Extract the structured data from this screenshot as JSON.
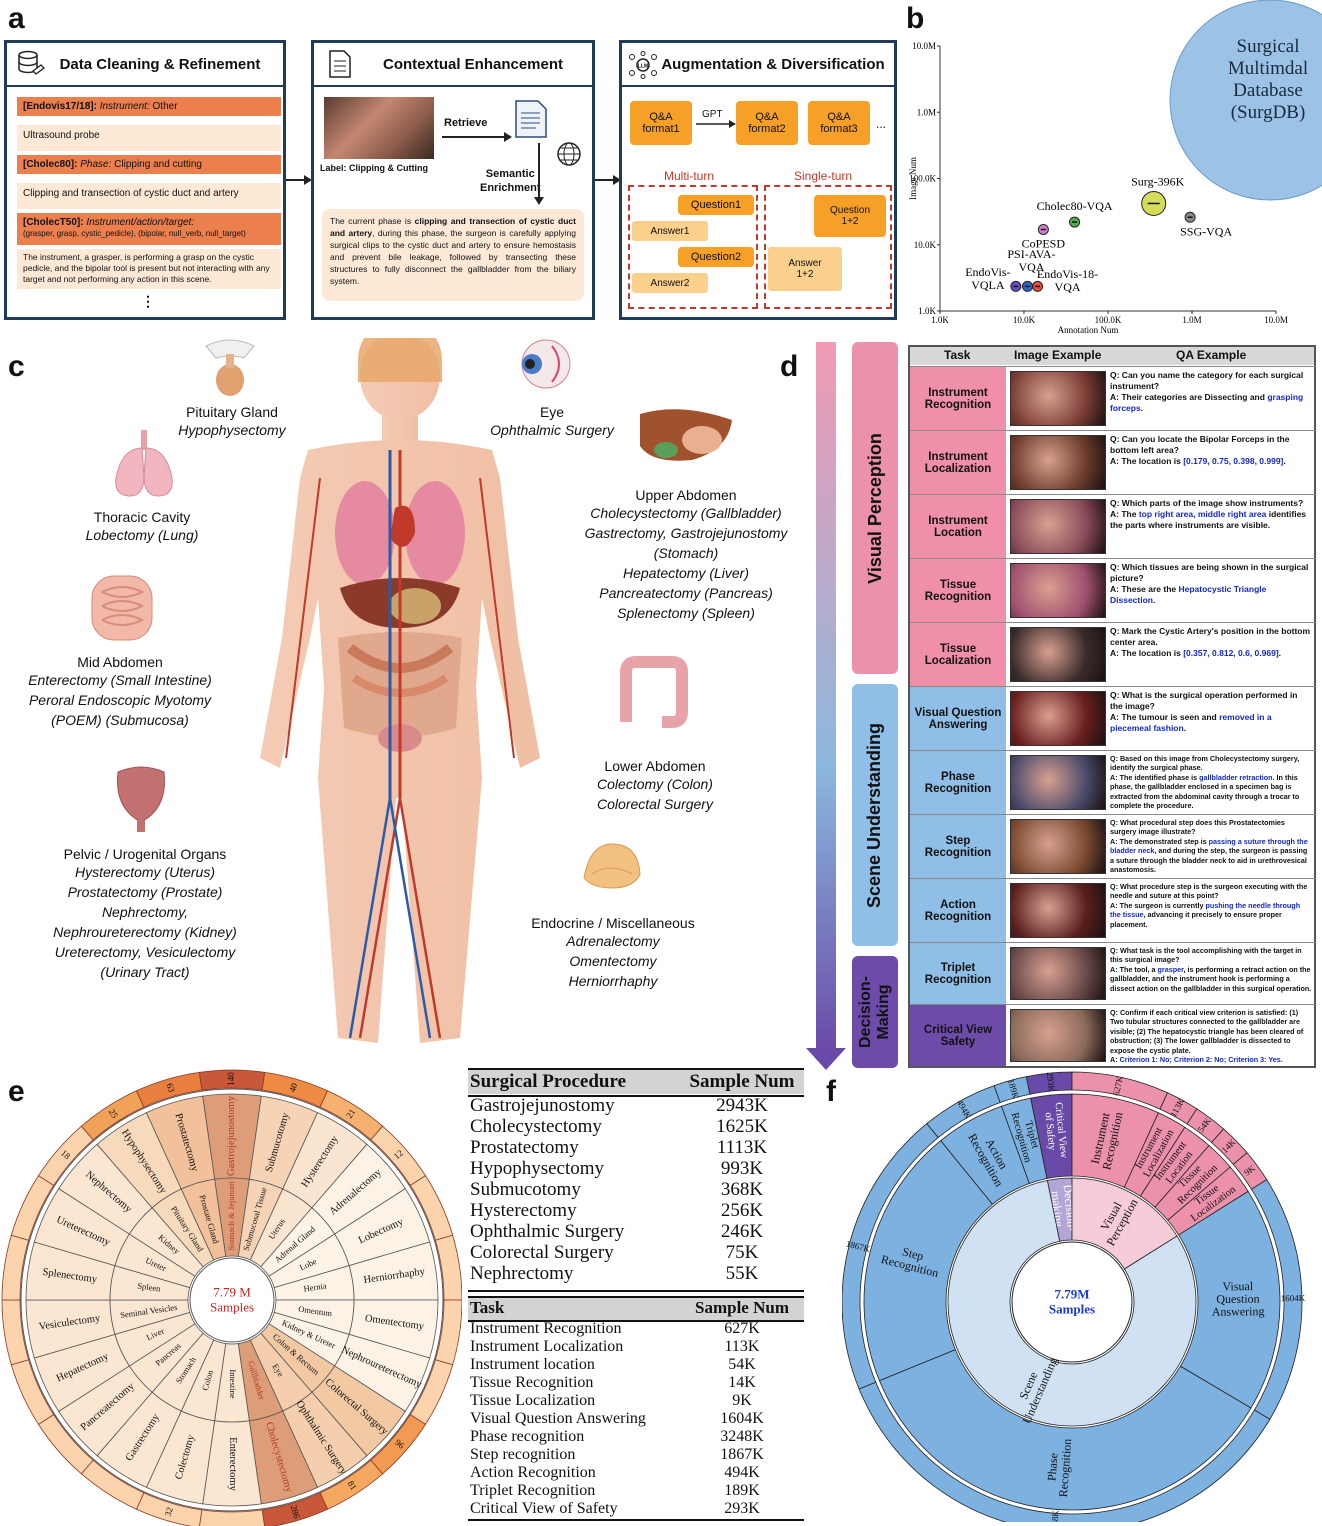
{
  "panel_labels": {
    "a": "a",
    "b": "b",
    "c": "c",
    "d": "d",
    "e": "e",
    "f": "f"
  },
  "panel_a": {
    "box1": {
      "title": "Data Cleaning & Refinement",
      "icon": "database-icon",
      "items": [
        {
          "kind": "header",
          "bold": "[Endovis17/18]:",
          "italic": "Instrument:",
          "rest": " Other"
        },
        {
          "kind": "body",
          "text": "Ultrasound probe"
        },
        {
          "kind": "header",
          "bold": "[Cholec80]:",
          "italic": "Phase:",
          "rest": " Clipping and cutting"
        },
        {
          "kind": "body",
          "text": "Clipping and transection of cystic duct and artery"
        },
        {
          "kind": "header",
          "bold": "[CholecT50]:",
          "italic": "Instrument/action/target:",
          "rest": ""
        },
        {
          "kind": "sub",
          "text": "(grasper, grasp, cystic_pedicle), (bipolar, null_verb, null_target)"
        },
        {
          "kind": "body",
          "text": "The instrument, a grasper, is performing a grasp on the cystic pedicle, and the bipolar tool is present but not interacting with any target and not performing any action in this scene."
        }
      ],
      "ellipsis": "⋮"
    },
    "box2": {
      "title": "Contextual Enhancement",
      "icon": "document-icon",
      "image_label": "Label: Clipping & Cutting",
      "retrieve": "Retrieve",
      "semantic": "Semantic\nEnrichment",
      "para_pre": "The current phase is ",
      "para_bold1": "clipping and transection of cystic duct and artery",
      "para_post": ", during this phase, the surgeon is carefully applying surgical clips to the cystic duct and artery to ensure hemostasis and prevent bile leakage, followed by transecting these structures to fully disconnect the gallbladder from the biliary system."
    },
    "box3": {
      "title": "Augmentation & Diversification",
      "icon": "llm-icon",
      "formats": [
        "Q&A\nformat1",
        "Q&A\nformat2",
        "Q&A\nformat3"
      ],
      "gpt": "GPT",
      "more": "...",
      "multi_turn": "Multi-turn",
      "single_turn": "Single-turn",
      "question1": "Question1",
      "answer1": "Answer1",
      "question2": "Question2",
      "answer2": "Answer2",
      "question12": "Question\n1+2",
      "answer12": "Answer\n1+2"
    }
  },
  "panel_b_chart": {
    "chart_data": {
      "type": "scatter",
      "xlabel": "Annotation Num",
      "ylabel": "Image Num",
      "x_scale": "log",
      "y_scale": "log",
      "xlim": [
        1000,
        10000000
      ],
      "ylim": [
        1000,
        10000000
      ],
      "x_ticks": [
        "1.0K",
        "10.0K",
        "100.0K",
        "1.0M",
        "10.0M"
      ],
      "y_ticks": [
        "1.0K",
        "10.0K",
        "100.0K",
        "1.0M",
        "10.0M"
      ],
      "points": [
        {
          "name": "Surg-396K",
          "x": 350000,
          "y": 42000,
          "color": "#d4dc5a"
        },
        {
          "name": "SSG-VQA",
          "x": 950000,
          "y": 26000,
          "color": "#8a8a8a"
        },
        {
          "name": "Cholec80-VQA",
          "x": 40000,
          "y": 22000,
          "color": "#4caf50"
        },
        {
          "name": "CoPESD",
          "x": 17000,
          "y": 17000,
          "color": "#d37fd0"
        },
        {
          "name": "PSI-AVA-VQA",
          "x": 11000,
          "y": 2350,
          "color": "#2a66c8"
        },
        {
          "name": "EndoVis-VQLA",
          "x": 8000,
          "y": 2350,
          "color": "#6a4cc7"
        },
        {
          "name": "EndoVis-18-VQA",
          "x": 14500,
          "y": 2350,
          "color": "#e84c3d"
        }
      ],
      "highlight": "Surgical\nMultimdal\n\nDatabase\n(SurgDB)"
    }
  },
  "panel_c": {
    "pituitary": {
      "title": "Pituitary Gland",
      "lines": [
        "Hypophysectomy"
      ]
    },
    "thoracic": {
      "title": "Thoracic Cavity",
      "lines": [
        "Lobectomy (Lung)"
      ]
    },
    "mid": {
      "title": "Mid Abdomen",
      "lines": [
        "Enterectomy (Small Intestine)",
        "Peroral Endoscopic Myotomy",
        "(POEM) (Submucosa)"
      ]
    },
    "pelvic": {
      "title": "Pelvic / Urogenital Organs",
      "lines": [
        "Hysterectomy (Uterus)",
        "Prostatectomy (Prostate)",
        "Nephrectomy,",
        "Nephroureterectomy (Kidney)",
        "Ureterectomy, Vesiculectomy",
        "(Urinary Tract)"
      ]
    },
    "eye": {
      "title": "Eye",
      "lines": [
        "Ophthalmic Surgery"
      ]
    },
    "upper": {
      "title": "Upper Abdomen",
      "lines": [
        "Cholecystectomy (Gallbladder)",
        "Gastrectomy, Gastrojejunostomy",
        "(Stomach)",
        "Hepatectomy (Liver)",
        "Pancreatectomy (Pancreas)",
        "Splenectomy (Spleen)"
      ]
    },
    "lower": {
      "title": "Lower Abdomen",
      "lines": [
        "Colectomy (Colon)",
        "Colorectal Surgery"
      ]
    },
    "endocrine": {
      "title": "Endocrine / Miscellaneous",
      "lines": [
        "Adrenalectomy",
        "Omentectomy",
        "Herniorrhaphy"
      ]
    }
  },
  "panel_d": {
    "headers": {
      "task": "Task",
      "image": "Image Example",
      "qa": "QA Example"
    },
    "bands": {
      "visual": "Visual Perception",
      "scene": "Scene Understanding",
      "decision": "Decision-\nMaking"
    },
    "rows": [
      {
        "task": "Instrument\nRecognition",
        "group": "vp",
        "q": "Q: Can you name the category for each surgical instrument?",
        "a_pre": "A: Their categories are Dissecting and ",
        "a_hl": "grasping forceps",
        "a_post": "."
      },
      {
        "task": "Instrument\nLocalization",
        "group": "vp",
        "q": "Q: Can you locate the Bipolar Forceps in the bottom left area?",
        "a_pre": "A: The location is ",
        "a_hl": "[0.179, 0.75, 0.398, 0.999]",
        "a_post": "."
      },
      {
        "task": "Instrument\nLocation",
        "group": "vp",
        "q": "Q: Which parts of the image show instruments?",
        "a_pre": "A: The ",
        "a_hl": "top right area, middle right area",
        "a_post": " identifies the parts where instruments are visible."
      },
      {
        "task": "Tissue\nRecognition",
        "group": "vp",
        "q": "Q: Which tissues are being shown in the surgical picture?",
        "a_pre": "A: These are the ",
        "a_hl": "Hepatocystic Triangle Dissection",
        "a_post": "."
      },
      {
        "task": "Tissue\nLocalization",
        "group": "vp",
        "q": "Q: Mark the Cystic Artery's position in the bottom center area.",
        "a_pre": "A: The location is ",
        "a_hl": "[0.357, 0.812, 0.6, 0.969]",
        "a_post": "."
      },
      {
        "task": "Visual Question\nAnswering",
        "group": "su",
        "q": "Q: What is the surgical operation performed in the image?",
        "a_pre": "A: The tumour is seen and ",
        "a_hl": "removed in a piecemeal fashion",
        "a_post": "."
      },
      {
        "task": "Phase\nRecognition",
        "group": "su",
        "q": "Q: Based on this image from Cholecystectomy surgery, identify the surgical phase.",
        "a_pre": "A: The identified phase is ",
        "a_hl": "gallbladder retraction",
        "a_post": ". In this phase, the gallbladder enclosed in a specimen bag is extracted from the abdominal cavity through a trocar to complete the procedure."
      },
      {
        "task": "Step\nRecognition",
        "group": "su",
        "q": "Q: What procedural step does this Prostatectomies surgery image illustrate?",
        "a_pre": "A: The demonstrated step is ",
        "a_hl": "passing a suture through the bladder neck",
        "a_post": ", and during the step, the surgeon is passing a suture through the bladder neck to aid in urethrovesical anastomosis."
      },
      {
        "task": "Action\nRecognition",
        "group": "su",
        "q": "Q: What procedure step is the surgeon executing with the needle and suture at this point?",
        "a_pre": "A: The surgeon is currently ",
        "a_hl": "pushing the needle through the tissue",
        "a_post": ", advancing it precisely to ensure proper placement."
      },
      {
        "task": "Triplet\nRecognition",
        "group": "su",
        "q": "Q: What task is the tool accomplishing with the target in this surgical image?",
        "a_pre": "A: The tool, a ",
        "a_hl": "grasper",
        "a_post": ", is performing a retract action on the gallbladder, and the instrument hook is performing a dissect action on the gallbladder in this surgical operation."
      },
      {
        "task": "Critical View\nSafety",
        "group": "dm",
        "q": "Q: Confirm if each critical view criterion is satisfied: (1) Two tubular structures connected to the gallbladder are visible; (2) The hepatocystic triangle has been cleared of obstruction; (3) The lower gallbladder is dissected to expose the cystic plate.",
        "a_pre": "A: ",
        "a_hl": "Criterion 1: No; Criterion 2: No; Criterion 3: Yes.",
        "a_post": ""
      }
    ]
  },
  "panel_e": {
    "center": "7.79 M\nSamples",
    "outer_counts": [
      {
        "label": "Gastrojejunostomy",
        "count": "140"
      },
      {
        "label": "Submucotomy",
        "count": "40"
      },
      {
        "label": "Hysterectomy",
        "count": "21"
      },
      {
        "label": "Other",
        "count": "12"
      },
      {
        "label": "Colorectal",
        "count": "96"
      },
      {
        "label": "Ophthalmic",
        "count": "81"
      },
      {
        "label": "Cholecystectomy",
        "count": "286"
      },
      {
        "label": "Colon",
        "count": "32"
      },
      {
        "label": "Prostate",
        "count": "63"
      },
      {
        "label": "Pituitary",
        "count": "25"
      },
      {
        "label": "Kidney",
        "count": "18"
      }
    ],
    "mid_labels": [
      "Stomach & Jejunum",
      "Submucosal Tissue",
      "Uterus",
      "Adrenal Gland",
      "Lobe",
      "Hernia",
      "Omentum",
      "Kidney & Ureter",
      "Colon & Rectum",
      "Eye",
      "Gallbladder",
      "Intestine",
      "Colon",
      "Stomach",
      "Pancreas",
      "Liver",
      "Seminal Vesicles",
      "Spleen",
      "Ureter",
      "Kidney",
      "Pituitary Gland",
      "Prostate Gland"
    ],
    "outer_labels": [
      "Gastrojejunostomy",
      "Submucotomy",
      "Hysterectomy",
      "Adrenalectomy",
      "Lobectomy",
      "Herniorrhaphy",
      "Omentectomy",
      "Nephroureterectomy",
      "Colorectal Surgery",
      "Ophthalmic Surgery",
      "Cholecystectomy",
      "Enterectomy",
      "Colectomy",
      "Gastrectomy",
      "Pancreatectomy",
      "Hepatectomy",
      "Vesiculectomy",
      "Splenectomy",
      "Ureterectomy",
      "Nephrectomy",
      "Hypophysectomy",
      "Prostatectomy"
    ]
  },
  "table1": {
    "header": [
      "Surgical Procedure",
      "Sample Num"
    ],
    "rows": [
      [
        "Gastrojejunostomy",
        "2943K"
      ],
      [
        "Cholecystectomy",
        "1625K"
      ],
      [
        "Prostatectomy",
        "1113K"
      ],
      [
        "Hypophysectomy",
        "993K"
      ],
      [
        "Submucotomy",
        "368K"
      ],
      [
        "Hysterectomy",
        "256K"
      ],
      [
        "Ophthalmic Surgery",
        "246K"
      ],
      [
        "Colorectal Surgery",
        "75K"
      ],
      [
        "Nephrectomy",
        "55K"
      ]
    ]
  },
  "table2": {
    "header": [
      "Task",
      "Sample Num"
    ],
    "rows": [
      [
        "Instrument Recognition",
        "627K"
      ],
      [
        "Instrument Localization",
        "113K"
      ],
      [
        "Instrument location",
        "54K"
      ],
      [
        "Tissue Recognition",
        "14K"
      ],
      [
        "Tissue Localization",
        "9K"
      ],
      [
        "Visual Question Answering",
        "1604K"
      ],
      [
        "Phase recognition",
        "3248K"
      ],
      [
        "Step recognition",
        "1867K"
      ],
      [
        "Action Recognition",
        "494K"
      ],
      [
        "Triplet Recognition",
        "189K"
      ],
      [
        "Critical View of Safety",
        "293K"
      ]
    ]
  },
  "panel_f": {
    "center": "7.79M\nSamples",
    "inner": [
      "Decision-\nmaking",
      "Visual\nPerception",
      "Scene\nUnderstanding"
    ],
    "outer": [
      {
        "label": "Critical View\nof Safety",
        "count": "293K"
      },
      {
        "label": "Instrument\nRecognition",
        "count": "627K"
      },
      {
        "label": "Instrument\nLocalization",
        "count": "113K"
      },
      {
        "label": "Instrument\nLocation",
        "count": "54K"
      },
      {
        "label": "Tissue\nRecognition",
        "count": "14K"
      },
      {
        "label": "Tissue\nLocalization",
        "count": "9K"
      },
      {
        "label": "Visual\nQuestion\nAnswering",
        "count": "1604K"
      },
      {
        "label": "Phase\nRecognition",
        "count": "3248K"
      },
      {
        "label": "Step\nRecognition",
        "count": "1867K"
      },
      {
        "label": "Action\nRecognition",
        "count": "494K"
      },
      {
        "label": "Triplet\nRecognition",
        "count": "189K"
      }
    ]
  }
}
